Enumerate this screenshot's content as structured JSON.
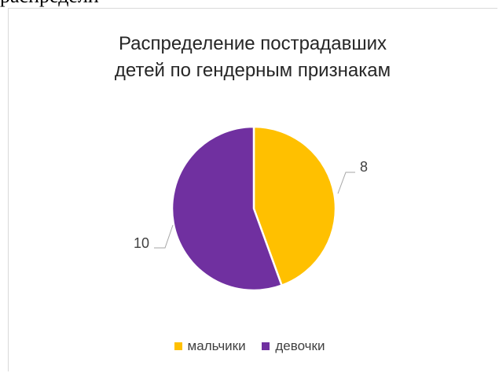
{
  "top_text": "распредели",
  "chart_data": {
    "type": "pie",
    "title_lines": [
      "Распределение пострадавших",
      "детей по гендерным признакам"
    ],
    "categories": [
      "мальчики",
      "девочки"
    ],
    "values": [
      8,
      10
    ],
    "data_labels": [
      "8",
      "10"
    ],
    "colors": [
      "#FFC000",
      "#7030A0"
    ],
    "legend_position": "bottom",
    "start_angle_deg": 0,
    "direction": "clockwise"
  }
}
